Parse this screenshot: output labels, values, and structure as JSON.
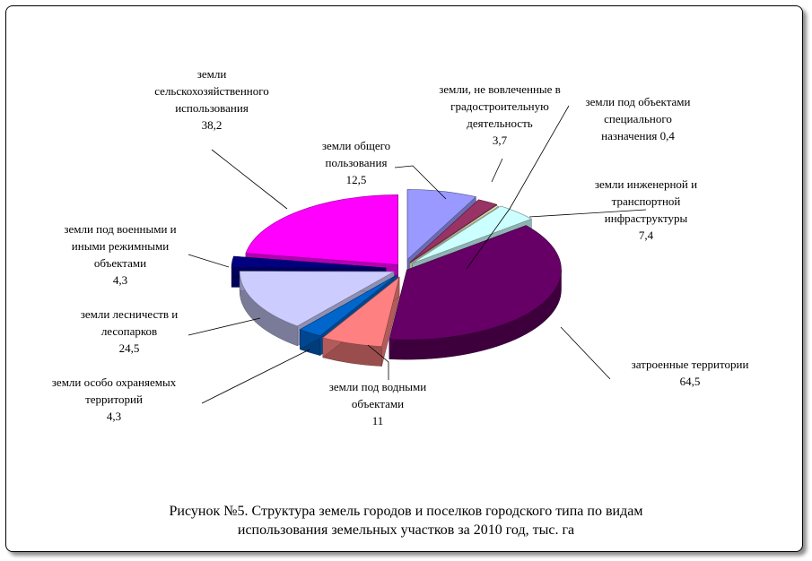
{
  "chart_data": {
    "type": "pie",
    "style": "3d-exploded",
    "unit": "тыс. га",
    "slices": [
      {
        "label": [
          "земли общего",
          "пользования"
        ],
        "value": 12.5,
        "value_text": "12,5",
        "color": "#9999ff"
      },
      {
        "label": [
          "земли, не вовлеченные в",
          "градостроительную",
          "деятельность"
        ],
        "value": 3.7,
        "value_text": "3,7",
        "color": "#993366"
      },
      {
        "label": [
          "земли под объектами",
          "специального",
          "назначения"
        ],
        "value": 0.4,
        "value_text": "0,4",
        "color": "#ffffcc"
      },
      {
        "label": [
          "земли инженерной и",
          "транспортной",
          "инфраструктуры"
        ],
        "value": 7.4,
        "value_text": "7,4",
        "color": "#ccffff"
      },
      {
        "label": [
          "затроенные территории"
        ],
        "value": 64.5,
        "value_text": "64,5",
        "color": "#660066"
      },
      {
        "label": [
          "земли под водными",
          "объектами"
        ],
        "value": 11,
        "value_text": "11",
        "color": "#ff8080"
      },
      {
        "label": [
          "земли особо охраняемых",
          "территорий"
        ],
        "value": 4.3,
        "value_text": "4,3",
        "color": "#0066cc"
      },
      {
        "label": [
          "земли лесничеств и",
          "лесопарков"
        ],
        "value": 24.5,
        "value_text": "24,5",
        "color": "#ccccff"
      },
      {
        "label": [
          "земли под военными и",
          "иными режимными",
          "объектами"
        ],
        "value": 4.3,
        "value_text": "4,3",
        "color": "#000080"
      },
      {
        "label": [
          "земли",
          "сельскохозяйственного",
          "использования"
        ],
        "value": 38.2,
        "value_text": "38,2",
        "color": "#ff00ff"
      }
    ]
  },
  "caption": {
    "line1": "Рисунок №5. Структура земель городов и поселков городского типа по видам",
    "line2": "использования земельных участков за 2010 год, тыс. га"
  }
}
